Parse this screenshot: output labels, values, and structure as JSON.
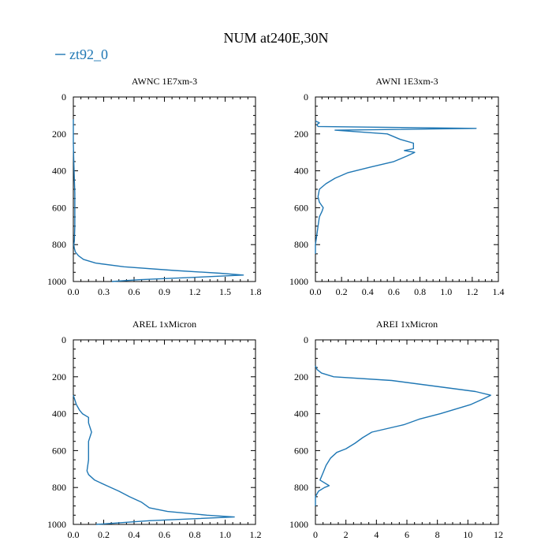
{
  "figure": {
    "title": "NUM at240E,30N",
    "legend_entry": "zt92_0",
    "legend_placement": "top-left",
    "series_color": "#1f77b4"
  },
  "chart_data": [
    {
      "type": "line",
      "title": "AWNC  1E7xm-3",
      "series_name": "zt92_0",
      "xlim": [
        0.0,
        1.8
      ],
      "ylim": [
        0,
        1000
      ],
      "y_inverted": true,
      "x_ticks": [
        "0.0",
        "0.3",
        "0.6",
        "0.9",
        "1.2",
        "1.5",
        "1.8"
      ],
      "y_ticks": [
        "0",
        "200",
        "400",
        "600",
        "800",
        "1000"
      ],
      "x": [
        0.0,
        0.0,
        0.005,
        0.01,
        0.015,
        0.015,
        0.015,
        0.01,
        0.005,
        0.01,
        0.02,
        0.05,
        0.1,
        0.22,
        0.5,
        1.0,
        1.45,
        1.68,
        1.3,
        0.65,
        0.38
      ],
      "y": [
        120,
        250,
        350,
        450,
        520,
        600,
        700,
        780,
        800,
        820,
        840,
        860,
        880,
        900,
        920,
        940,
        955,
        965,
        975,
        990,
        1000
      ]
    },
    {
      "type": "line",
      "title": "AWNI  1E3xm-3",
      "series_name": "zt92_0",
      "xlim": [
        0.0,
        1.4
      ],
      "ylim": [
        0,
        1000
      ],
      "y_inverted": true,
      "x_ticks": [
        "0.0",
        "0.2",
        "0.4",
        "0.6",
        "0.8",
        "1.0",
        "1.2",
        "1.4"
      ],
      "y_ticks": [
        "0",
        "200",
        "400",
        "600",
        "800",
        "1000"
      ],
      "x": [
        0.0,
        0.03,
        0.01,
        0.02,
        1.23,
        0.15,
        0.55,
        0.65,
        0.75,
        0.75,
        0.68,
        0.76,
        0.7,
        0.6,
        0.42,
        0.25,
        0.15,
        0.08,
        0.03,
        0.02,
        0.03,
        0.06,
        0.05,
        0.03,
        0.02,
        0.01,
        0.0,
        0.0
      ],
      "y": [
        130,
        140,
        150,
        160,
        170,
        180,
        200,
        230,
        250,
        280,
        290,
        300,
        320,
        350,
        380,
        410,
        440,
        470,
        500,
        540,
        570,
        600,
        620,
        650,
        700,
        750,
        800,
        850
      ]
    },
    {
      "type": "line",
      "title": "AREL  1xMicron",
      "series_name": "zt92_0",
      "xlim": [
        0.0,
        1.2
      ],
      "ylim": [
        0,
        1000
      ],
      "y_inverted": true,
      "x_ticks": [
        "0.0",
        "0.2",
        "0.4",
        "0.6",
        "0.8",
        "1.0",
        "1.2"
      ],
      "y_ticks": [
        "0",
        "200",
        "400",
        "600",
        "800",
        "1000"
      ],
      "x": [
        0.0,
        0.02,
        0.04,
        0.06,
        0.1,
        0.1,
        0.12,
        0.1,
        0.1,
        0.1,
        0.09,
        0.1,
        0.14,
        0.22,
        0.3,
        0.37,
        0.45,
        0.5,
        0.62,
        0.88,
        1.06,
        0.5,
        0.15
      ],
      "y": [
        300,
        350,
        380,
        400,
        420,
        450,
        500,
        550,
        600,
        650,
        710,
        730,
        760,
        790,
        820,
        850,
        880,
        910,
        930,
        950,
        960,
        980,
        1000
      ]
    },
    {
      "type": "line",
      "title": "AREI  1xMicron",
      "series_name": "zt92_0",
      "xlim": [
        0,
        12
      ],
      "ylim": [
        0,
        1000
      ],
      "y_inverted": true,
      "x_ticks": [
        "0",
        "2",
        "4",
        "6",
        "8",
        "10",
        "12"
      ],
      "y_ticks": [
        "0",
        "200",
        "400",
        "600",
        "800",
        "1000"
      ],
      "x": [
        0.0,
        0.1,
        0.4,
        1.2,
        5.0,
        10.5,
        11.5,
        11.0,
        10.2,
        8.2,
        6.8,
        5.8,
        3.7,
        3.1,
        2.6,
        2.0,
        1.4,
        1.0,
        0.7,
        0.5,
        0.3,
        0.9,
        0.6,
        0.2,
        0.0,
        0.0
      ],
      "y": [
        140,
        160,
        180,
        200,
        220,
        280,
        300,
        320,
        350,
        400,
        430,
        460,
        500,
        530,
        560,
        590,
        610,
        640,
        680,
        720,
        760,
        790,
        800,
        820,
        850,
        900
      ]
    }
  ]
}
